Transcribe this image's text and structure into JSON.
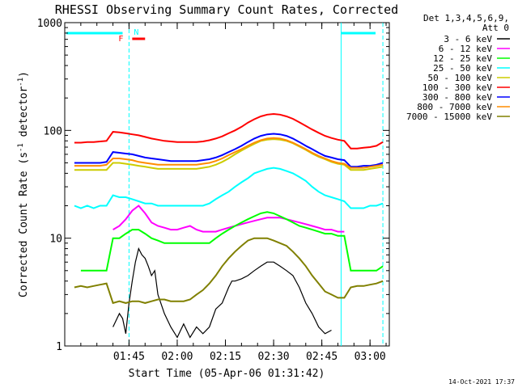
{
  "chart_data": {
    "type": "line",
    "title": "RHESSI Observing Summary Count Rates, Corrected",
    "xlabel": "Start Time (05-Apr-06 01:31:42)",
    "ylabel": "Corrected Count Rate (s⁻¹ detector⁻¹)",
    "ylabel_parts": {
      "a": "Corrected Count Rate (s",
      "b": "-1",
      "c": " detector",
      "d": "-1",
      "e": ")"
    },
    "y_scale": "log",
    "ylim": [
      1,
      1000
    ],
    "xlim_minutes": [
      85,
      186
    ],
    "x_ticks": [
      {
        "label": "01:45",
        "m": 105
      },
      {
        "label": "02:00",
        "m": 120
      },
      {
        "label": "02:15",
        "m": 135
      },
      {
        "label": "02:30",
        "m": 150
      },
      {
        "label": "02:45",
        "m": 165
      },
      {
        "label": "03:00",
        "m": 180
      }
    ],
    "y_ticks": [
      {
        "label": "1",
        "v": 1
      },
      {
        "label": "10",
        "v": 10
      },
      {
        "label": "100",
        "v": 100
      },
      {
        "label": "1000",
        "v": 1000
      }
    ],
    "legend_title": [
      "Det 1,3,4,5,6,9,",
      "Att 0"
    ],
    "legend_position": "right",
    "series": [
      {
        "name": "3 - 6 keV",
        "color": "#000000",
        "x": [
          85,
          98,
          100,
          102,
          103,
          104,
          105,
          106,
          107,
          108,
          109,
          110,
          111,
          112,
          113,
          114,
          116,
          118,
          120,
          122,
          124,
          126,
          128,
          130,
          132,
          134,
          136,
          137,
          138,
          140,
          142,
          144,
          146,
          148,
          150,
          152,
          154,
          156,
          158,
          160,
          162,
          164,
          166,
          168,
          170,
          172
        ],
        "y": [
          null,
          null,
          1.5,
          2,
          1.8,
          1.3,
          2.5,
          4,
          6,
          8,
          7,
          6.5,
          5.5,
          4.5,
          5,
          3,
          2,
          1.5,
          1.2,
          1.6,
          1.2,
          1.5,
          1.3,
          1.5,
          2.2,
          2.5,
          3.5,
          4,
          4,
          4.2,
          4.5,
          5,
          5.5,
          6,
          6,
          5.5,
          5,
          4.5,
          3.5,
          2.5,
          2,
          1.5,
          1.3,
          1.4,
          null,
          null
        ]
      },
      {
        "name": "6 - 12 keV",
        "color": "#ff00ff",
        "x": [
          85,
          98,
          100,
          102,
          104,
          106,
          108,
          110,
          112,
          114,
          116,
          118,
          120,
          122,
          124,
          126,
          128,
          130,
          132,
          134,
          136,
          138,
          140,
          142,
          144,
          146,
          148,
          150,
          152,
          154,
          156,
          158,
          160,
          162,
          164,
          166,
          168,
          170,
          172,
          174,
          176,
          178,
          180,
          182,
          184
        ],
        "y": [
          null,
          null,
          12,
          13,
          15,
          18,
          20,
          17,
          14,
          13,
          12.5,
          12,
          12,
          12.5,
          13,
          12,
          11.5,
          11.5,
          11.5,
          12,
          12.5,
          13,
          13.5,
          14,
          14.5,
          15,
          15.5,
          15.5,
          15.5,
          15,
          14.5,
          14,
          13.5,
          13,
          12.5,
          12,
          12,
          11.5,
          11.5,
          null,
          null,
          null,
          null,
          null,
          null
        ]
      },
      {
        "name": "12 - 25 keV",
        "color": "#00ff00",
        "x": [
          85,
          90,
          92,
          94,
          96,
          98,
          100,
          102,
          104,
          106,
          108,
          110,
          112,
          114,
          116,
          118,
          120,
          122,
          124,
          126,
          128,
          130,
          132,
          134,
          136,
          138,
          140,
          142,
          144,
          146,
          148,
          150,
          152,
          154,
          156,
          158,
          160,
          162,
          164,
          166,
          168,
          170,
          172,
          174,
          176,
          178,
          180,
          182,
          184
        ],
        "y": [
          null,
          5,
          5,
          5,
          5,
          5,
          10,
          10,
          11,
          12,
          12,
          11,
          10,
          9.5,
          9,
          9,
          9,
          9,
          9,
          9,
          9,
          9,
          10,
          11,
          12,
          13,
          14,
          15,
          16,
          17,
          17.5,
          17,
          16,
          15,
          14,
          13,
          12.5,
          12,
          11.5,
          11,
          11,
          10.5,
          10.5,
          5,
          5,
          5,
          5,
          5,
          5.5
        ]
      },
      {
        "name": "25 - 50 keV",
        "color": "#00ffff",
        "x": [
          85,
          88,
          90,
          92,
          94,
          96,
          98,
          100,
          102,
          104,
          106,
          108,
          110,
          112,
          114,
          116,
          118,
          120,
          122,
          124,
          126,
          128,
          130,
          132,
          134,
          136,
          138,
          140,
          142,
          144,
          146,
          148,
          150,
          152,
          154,
          156,
          158,
          160,
          162,
          164,
          166,
          168,
          170,
          172,
          174,
          176,
          178,
          180,
          182,
          184
        ],
        "y": [
          null,
          20,
          19,
          20,
          19,
          20,
          20,
          25,
          24,
          24,
          23,
          22,
          21,
          21,
          20,
          20,
          20,
          20,
          20,
          20,
          20,
          20,
          21,
          23,
          25,
          27,
          30,
          33,
          36,
          40,
          42,
          44,
          45,
          44,
          42,
          40,
          37,
          34,
          30,
          27,
          25,
          24,
          23,
          22,
          19,
          19,
          19,
          20,
          20,
          21
        ]
      },
      {
        "name": "50 - 100 keV",
        "color": "#cccc00",
        "x": [
          85,
          88,
          90,
          92,
          94,
          96,
          98,
          100,
          102,
          104,
          106,
          108,
          110,
          112,
          114,
          116,
          118,
          120,
          122,
          124,
          126,
          128,
          130,
          132,
          134,
          136,
          138,
          140,
          142,
          144,
          146,
          148,
          150,
          152,
          154,
          156,
          158,
          160,
          162,
          164,
          166,
          168,
          170,
          172,
          174,
          176,
          178,
          180,
          182,
          184
        ],
        "y": [
          null,
          43,
          43,
          43,
          43,
          43,
          43,
          50,
          50,
          49,
          48,
          47,
          46,
          45,
          44,
          44,
          44,
          44,
          44,
          44,
          44,
          45,
          46,
          48,
          51,
          55,
          60,
          65,
          70,
          75,
          80,
          82,
          83,
          82,
          80,
          76,
          71,
          66,
          61,
          57,
          54,
          51,
          49,
          48,
          43,
          43,
          43,
          44,
          45,
          46
        ]
      },
      {
        "name": "100 - 300 keV",
        "color": "#ff0000",
        "x": [
          85,
          88,
          90,
          92,
          94,
          96,
          98,
          100,
          102,
          104,
          106,
          108,
          110,
          112,
          114,
          116,
          118,
          120,
          122,
          124,
          126,
          128,
          130,
          132,
          134,
          136,
          138,
          140,
          142,
          144,
          146,
          148,
          150,
          152,
          154,
          156,
          158,
          160,
          162,
          164,
          166,
          168,
          170,
          172,
          174,
          176,
          178,
          180,
          182,
          184
        ],
        "y": [
          null,
          77,
          77,
          78,
          78,
          79,
          80,
          97,
          96,
          94,
          92,
          90,
          87,
          84,
          82,
          80,
          79,
          78,
          78,
          78,
          78,
          79,
          81,
          84,
          88,
          94,
          100,
          108,
          118,
          127,
          135,
          140,
          142,
          140,
          135,
          128,
          119,
          110,
          102,
          95,
          89,
          85,
          82,
          80,
          68,
          68,
          69,
          70,
          72,
          78
        ]
      },
      {
        "name": "300 - 800 keV",
        "color": "#0000ff",
        "x": [
          85,
          88,
          90,
          92,
          94,
          96,
          98,
          100,
          102,
          104,
          106,
          108,
          110,
          112,
          114,
          116,
          118,
          120,
          122,
          124,
          126,
          128,
          130,
          132,
          134,
          136,
          138,
          140,
          142,
          144,
          146,
          148,
          150,
          152,
          154,
          156,
          158,
          160,
          162,
          164,
          166,
          168,
          170,
          172,
          174,
          176,
          178,
          180,
          182,
          184
        ],
        "y": [
          null,
          50,
          50,
          50,
          50,
          50,
          51,
          63,
          62,
          61,
          60,
          58,
          56,
          55,
          54,
          53,
          52,
          52,
          52,
          52,
          52,
          53,
          54,
          56,
          59,
          63,
          67,
          72,
          78,
          84,
          89,
          92,
          93,
          92,
          89,
          84,
          78,
          72,
          67,
          62,
          58,
          56,
          54,
          53,
          46,
          46,
          47,
          47,
          48,
          50
        ]
      },
      {
        "name": "800 - 7000 keV",
        "color": "#ff8c00",
        "x": [
          85,
          88,
          90,
          92,
          94,
          96,
          98,
          100,
          102,
          104,
          106,
          108,
          110,
          112,
          114,
          116,
          118,
          120,
          122,
          124,
          126,
          128,
          130,
          132,
          134,
          136,
          138,
          140,
          142,
          144,
          146,
          148,
          150,
          152,
          154,
          156,
          158,
          160,
          162,
          164,
          166,
          168,
          170,
          172,
          174,
          176,
          178,
          180,
          182,
          184
        ],
        "y": [
          null,
          47,
          47,
          47,
          47,
          47,
          48,
          55,
          55,
          54,
          53,
          51,
          50,
          49,
          48,
          48,
          48,
          48,
          48,
          48,
          48,
          49,
          50,
          52,
          55,
          59,
          63,
          67,
          72,
          77,
          81,
          84,
          85,
          84,
          81,
          77,
          72,
          67,
          62,
          58,
          55,
          52,
          50,
          49,
          45,
          45,
          45,
          46,
          47,
          48
        ]
      },
      {
        "name": "7000 - 15000 keV",
        "color": "#808000",
        "x": [
          85,
          88,
          90,
          92,
          94,
          96,
          98,
          100,
          102,
          104,
          106,
          108,
          110,
          112,
          114,
          116,
          118,
          120,
          122,
          124,
          126,
          128,
          130,
          132,
          134,
          136,
          138,
          140,
          142,
          144,
          146,
          148,
          150,
          152,
          154,
          156,
          158,
          160,
          162,
          164,
          166,
          168,
          170,
          172,
          174,
          176,
          178,
          180,
          182,
          184
        ],
        "y": [
          null,
          3.5,
          3.6,
          3.5,
          3.6,
          3.7,
          3.8,
          2.5,
          2.6,
          2.5,
          2.6,
          2.6,
          2.5,
          2.6,
          2.7,
          2.7,
          2.6,
          2.6,
          2.6,
          2.7,
          3,
          3.3,
          3.8,
          4.5,
          5.5,
          6.5,
          7.5,
          8.5,
          9.5,
          10,
          10,
          10,
          9.5,
          9,
          8.5,
          7.5,
          6.5,
          5.5,
          4.5,
          3.8,
          3.2,
          3,
          2.8,
          2.8,
          3.5,
          3.6,
          3.6,
          3.7,
          3.8,
          4
        ]
      }
    ],
    "annotations": {
      "attenuator_bar_color": "#00ffff",
      "flag_bar_color": "#ff0000",
      "flag_labels": {
        "f": "F",
        "n": "N"
      },
      "vertical_markers_minutes": [
        105,
        171,
        184
      ]
    }
  },
  "footer": {
    "timestamp": "14-Oct-2021 17:37"
  }
}
